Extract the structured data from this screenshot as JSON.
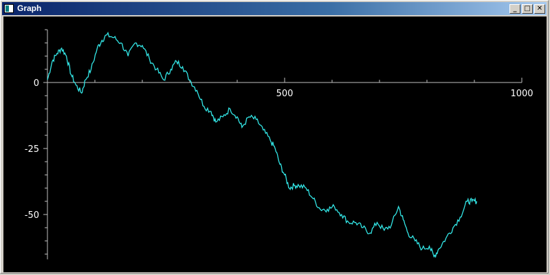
{
  "window": {
    "title": "Graph",
    "controls": {
      "minimize": "_",
      "maximize": "□",
      "close": "✕"
    }
  },
  "colors": {
    "background": "#000000",
    "axis": "#c0c0c0",
    "line": "#33e6e6"
  },
  "chart_data": {
    "type": "line",
    "title": "",
    "xlabel": "",
    "ylabel": "",
    "xlim": [
      0,
      1000
    ],
    "ylim": [
      -67,
      20
    ],
    "x_ticks": [
      {
        "value": 500,
        "label": "500"
      },
      {
        "value": 1000,
        "label": "1000"
      }
    ],
    "y_ticks": [
      {
        "value": 0,
        "label": "0"
      },
      {
        "value": -25,
        "label": "-25"
      },
      {
        "value": -50,
        "label": "-50"
      }
    ],
    "series": [
      {
        "points": [
          [
            0,
            1
          ],
          [
            10,
            8
          ],
          [
            20,
            11
          ],
          [
            30,
            13
          ],
          [
            40,
            10
          ],
          [
            50,
            3
          ],
          [
            60,
            -1
          ],
          [
            72,
            -4
          ],
          [
            80,
            1
          ],
          [
            92,
            5
          ],
          [
            105,
            13
          ],
          [
            115,
            16
          ],
          [
            125,
            18
          ],
          [
            140,
            17
          ],
          [
            155,
            15
          ],
          [
            170,
            10
          ],
          [
            185,
            15
          ],
          [
            200,
            14
          ],
          [
            215,
            9
          ],
          [
            230,
            5
          ],
          [
            245,
            1
          ],
          [
            260,
            5
          ],
          [
            272,
            8
          ],
          [
            285,
            6
          ],
          [
            300,
            1
          ],
          [
            315,
            -3
          ],
          [
            330,
            -9
          ],
          [
            345,
            -11
          ],
          [
            355,
            -15
          ],
          [
            370,
            -13
          ],
          [
            385,
            -10
          ],
          [
            400,
            -13
          ],
          [
            410,
            -17
          ],
          [
            425,
            -13
          ],
          [
            440,
            -14
          ],
          [
            455,
            -18
          ],
          [
            470,
            -22
          ],
          [
            480,
            -25
          ],
          [
            490,
            -31
          ],
          [
            500,
            -35
          ],
          [
            510,
            -40
          ],
          [
            520,
            -39
          ],
          [
            530,
            -39
          ],
          [
            545,
            -40
          ],
          [
            560,
            -44
          ],
          [
            575,
            -48
          ],
          [
            590,
            -48
          ],
          [
            605,
            -47
          ],
          [
            620,
            -50
          ],
          [
            635,
            -53
          ],
          [
            650,
            -53
          ],
          [
            665,
            -55
          ],
          [
            680,
            -57
          ],
          [
            695,
            -53
          ],
          [
            710,
            -56
          ],
          [
            725,
            -54
          ],
          [
            740,
            -47
          ],
          [
            750,
            -52
          ],
          [
            760,
            -57
          ],
          [
            775,
            -60
          ],
          [
            790,
            -63
          ],
          [
            805,
            -62
          ],
          [
            815,
            -66
          ],
          [
            825,
            -63
          ],
          [
            840,
            -59
          ],
          [
            855,
            -55
          ],
          [
            870,
            -51
          ],
          [
            885,
            -45
          ],
          [
            895,
            -45
          ],
          [
            905,
            -45
          ]
        ]
      }
    ]
  }
}
